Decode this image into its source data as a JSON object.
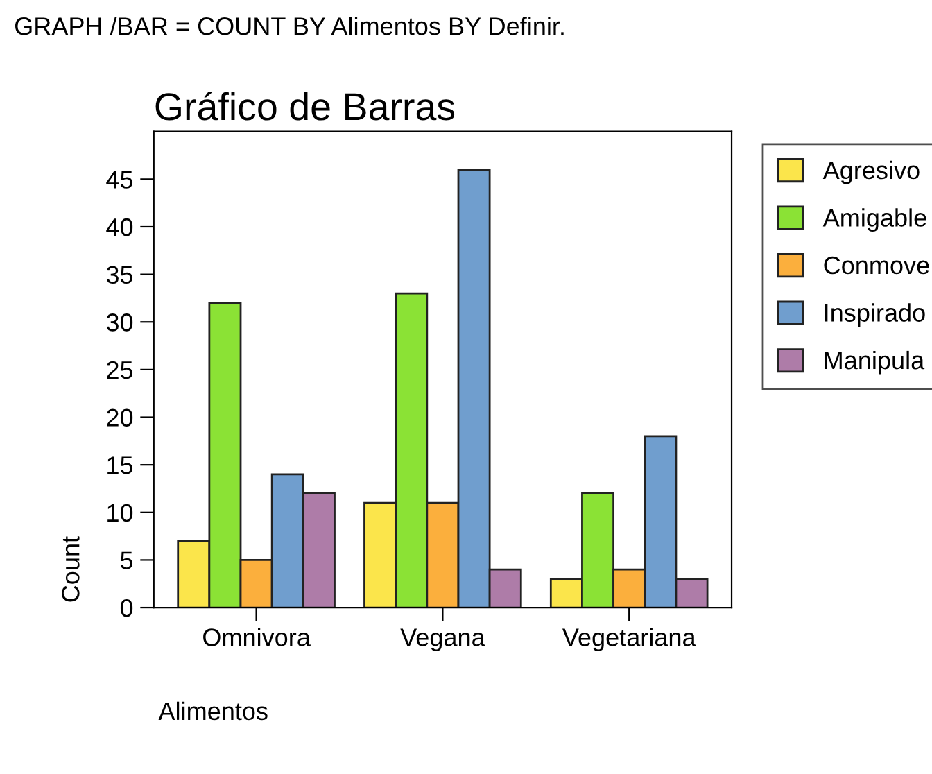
{
  "chart_data": {
    "type": "bar",
    "title": "Gráfico de Barras",
    "xlabel": "Alimentos",
    "ylabel": "Count",
    "annotations": [
      "GRAPH /BAR = COUNT BY Alimentos BY Definir."
    ],
    "categories": [
      "Omnivora",
      "Vegana",
      "Vegetariana"
    ],
    "series": [
      {
        "name": "Agresivo",
        "color": "#fbe54b",
        "values": [
          7,
          11,
          3
        ]
      },
      {
        "name": "Amigable",
        "color": "#8be235",
        "values": [
          32,
          33,
          12
        ]
      },
      {
        "name": "Conmove",
        "color": "#fbaf3d",
        "values": [
          5,
          11,
          4
        ]
      },
      {
        "name": "Inspirado",
        "color": "#709ece",
        "values": [
          14,
          46,
          18
        ]
      },
      {
        "name": "Manipula",
        "color": "#ae7ca8",
        "values": [
          12,
          4,
          3
        ]
      }
    ],
    "ylim": [
      0,
      50
    ],
    "yticks": [
      0,
      5,
      10,
      15,
      20,
      25,
      30,
      35,
      40,
      45
    ],
    "grid": false,
    "legend": "right"
  }
}
